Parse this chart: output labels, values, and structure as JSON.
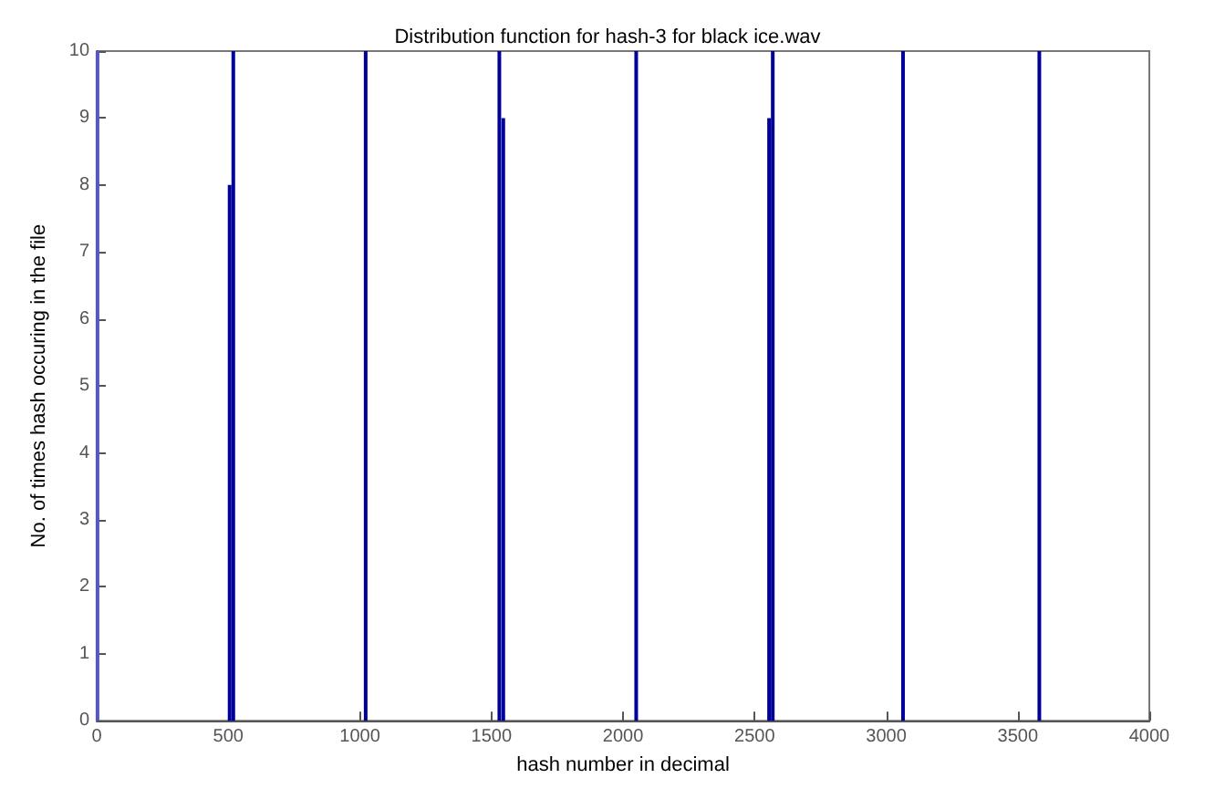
{
  "chart_data": {
    "type": "bar",
    "title": "Distribution function for hash-3 for black ice.wav",
    "xlabel": "hash number in decimal",
    "ylabel": "No. of times hash occuring in the file",
    "x": [
      3,
      505,
      519,
      1022,
      1530,
      1545,
      2050,
      2555,
      2569,
      3064,
      3582
    ],
    "values": [
      10,
      8,
      10,
      10,
      10,
      9,
      10,
      9,
      10,
      10,
      10
    ],
    "colors": [
      "#5555cc",
      "#000099",
      "#000099",
      "#000099",
      "#000099",
      "#000099",
      "#000099",
      "#000099",
      "#000099",
      "#000099",
      "#000099"
    ],
    "xlim": [
      0,
      4000
    ],
    "xticks": [
      0,
      500,
      1000,
      1500,
      2000,
      2500,
      3000,
      3500,
      4000
    ],
    "ylim": [
      0,
      10
    ],
    "yticks": [
      0,
      1,
      2,
      3,
      4,
      5,
      6,
      7,
      8,
      9,
      10
    ],
    "grid": false
  }
}
